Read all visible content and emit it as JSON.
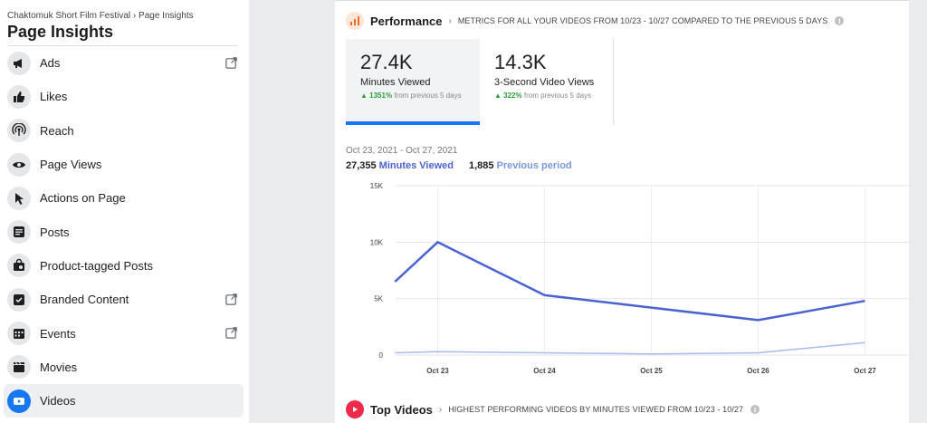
{
  "breadcrumb": "Chaktomuk Short Film Festival › Page Insights",
  "page_title": "Page Insights",
  "sidebar": {
    "items": [
      {
        "label": "Ads",
        "icon": "megaphone-icon",
        "external": true
      },
      {
        "label": "Likes",
        "icon": "thumbs-up-icon",
        "external": false
      },
      {
        "label": "Reach",
        "icon": "broadcast-icon",
        "external": false
      },
      {
        "label": "Page Views",
        "icon": "eye-icon",
        "external": false
      },
      {
        "label": "Actions on Page",
        "icon": "cursor-icon",
        "external": false
      },
      {
        "label": "Posts",
        "icon": "posts-icon",
        "external": false
      },
      {
        "label": "Product-tagged Posts",
        "icon": "shopping-bag-icon",
        "external": false
      },
      {
        "label": "Branded Content",
        "icon": "branded-content-icon",
        "external": true
      },
      {
        "label": "Events",
        "icon": "calendar-icon",
        "external": true
      },
      {
        "label": "Movies",
        "icon": "clapperboard-icon",
        "external": false
      },
      {
        "label": "Videos",
        "icon": "video-play-icon",
        "external": false,
        "active": true
      }
    ]
  },
  "performance": {
    "title": "Performance",
    "description": "METRICS FOR ALL YOUR VIDEOS FROM 10/23 - 10/27 COMPARED TO THE PREVIOUS 5 DAYS",
    "cards": [
      {
        "value": "27.4K",
        "label": "Minutes Viewed",
        "delta_pct": "1351%",
        "delta_text": "from previous 5 days",
        "active": true
      },
      {
        "value": "14.3K",
        "label": "3-Second Video Views",
        "delta_pct": "322%",
        "delta_text": "from previous 5 days",
        "active": false
      }
    ],
    "date_range": "Oct 23, 2021 - Oct 27, 2021",
    "legend": {
      "current_value": "27,355",
      "current_label": "Minutes Viewed",
      "previous_value": "1,885",
      "previous_label": "Previous period"
    }
  },
  "chart_data": {
    "type": "line",
    "categories": [
      "Oct 23",
      "Oct 24",
      "Oct 25",
      "Oct 26",
      "Oct 27"
    ],
    "y_tick_labels": [
      "0",
      "5K",
      "10K",
      "15K"
    ],
    "y_ticks": [
      0,
      5000,
      10000,
      15000
    ],
    "ylim": [
      0,
      15000
    ],
    "grid": true,
    "series": [
      {
        "name": "Minutes Viewed",
        "color": "#4b62d1",
        "x": [
          -0.4,
          0,
          1,
          2,
          3,
          4
        ],
        "values": [
          6500,
          10000,
          5300,
          4200,
          3100,
          4800
        ]
      },
      {
        "name": "Previous period",
        "color": "#a9bbf0",
        "x": [
          -0.4,
          0,
          1,
          2,
          3,
          4
        ],
        "values": [
          200,
          300,
          200,
          100,
          200,
          1100
        ]
      }
    ]
  },
  "top_videos": {
    "title": "Top Videos",
    "description": "HIGHEST PERFORMING VIDEOS BY MINUTES VIEWED FROM 10/23 - 10/27"
  },
  "colors": {
    "accent": "#1877f2",
    "performance_icon": "#f26b21",
    "top_videos_icon": "#f0284a",
    "trend_up": "#2a9d3a"
  }
}
